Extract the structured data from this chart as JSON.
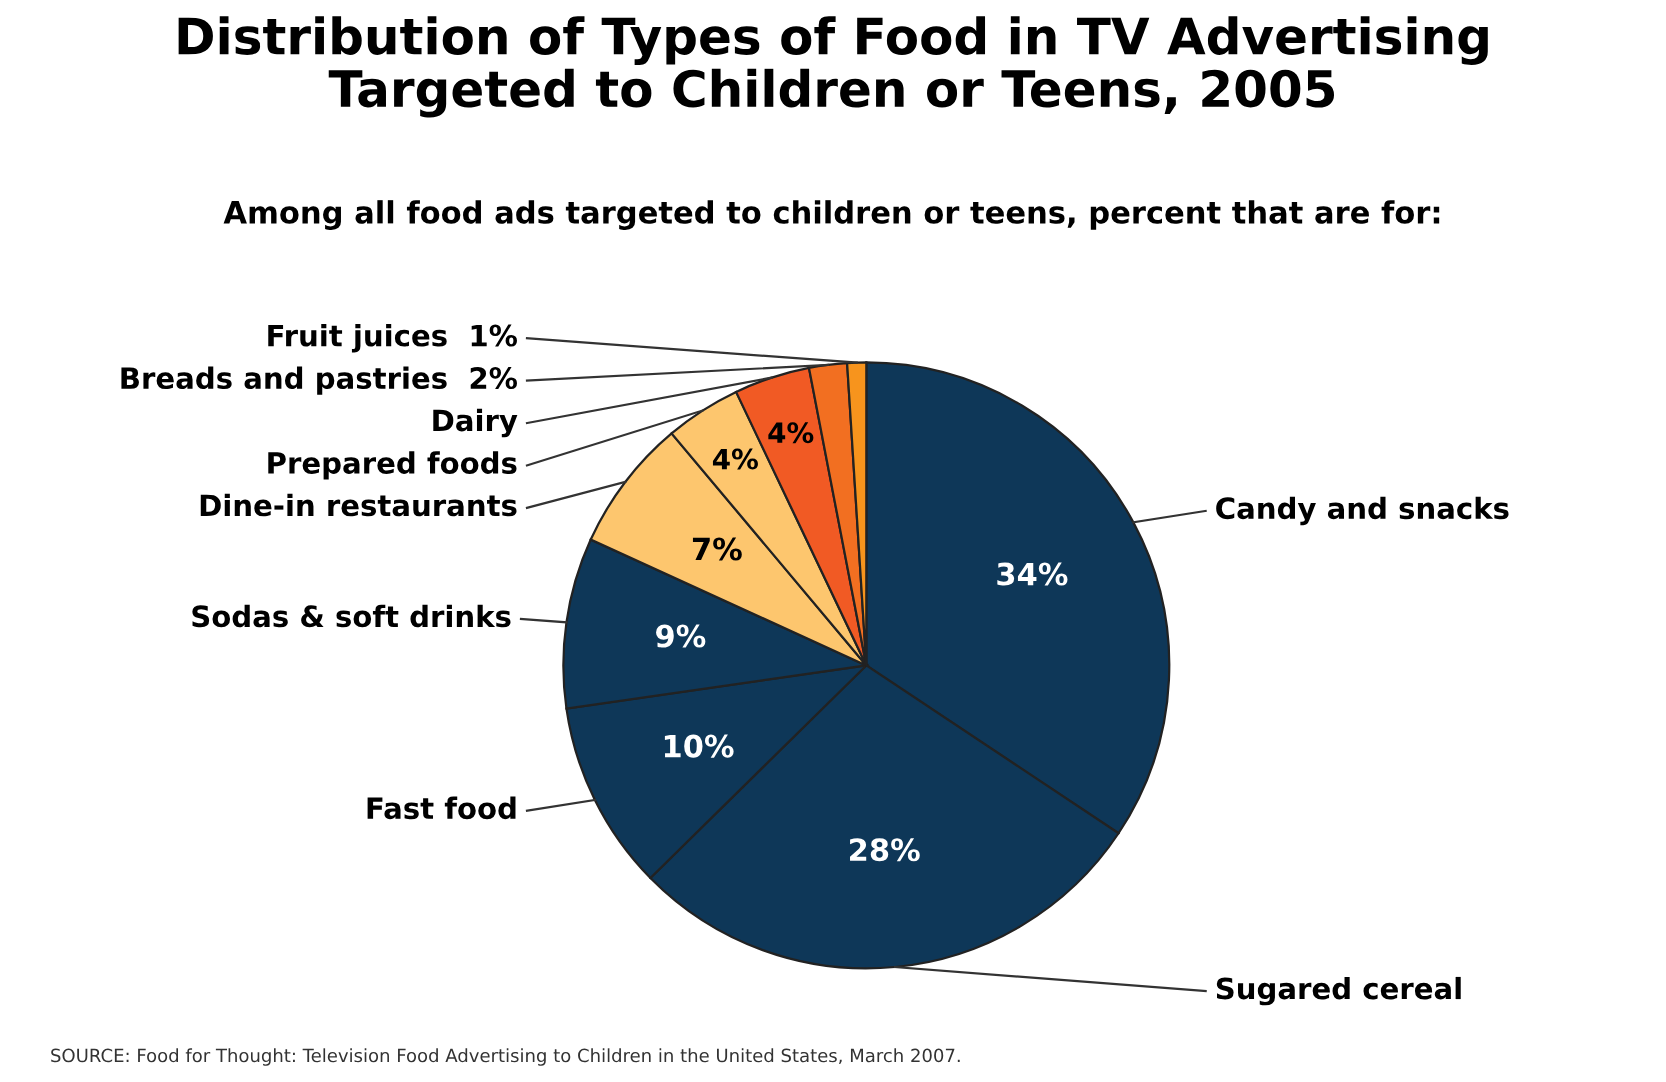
{
  "chart_data": {
    "type": "pie",
    "title": "Distribution of Types of Food in TV Advertising\nTargeted to Children or Teens, 2005",
    "subtitle": "Among all food ads targeted to children or teens, percent that are for:",
    "categories": [
      "Candy and snacks",
      "Sugared cereal",
      "Fast food",
      "Sodas & soft drinks",
      "Dine-in restaurants",
      "Prepared foods",
      "Dairy",
      "Breads and pastries",
      "Fruit juices"
    ],
    "values": [
      34,
      28,
      10,
      9,
      7,
      4,
      4,
      2,
      1
    ],
    "value_labels": [
      "34%",
      "28%",
      "10%",
      "9%",
      "7%",
      "4%",
      "4%",
      "2%",
      "1%"
    ],
    "colors": [
      "#0e3758",
      "#0e3758",
      "#0e3758",
      "#0e3758",
      "#fdc66e",
      "#fdc66e",
      "#f15a24",
      "#f26f21",
      "#f7941d"
    ],
    "annotations": [
      "SOURCE: Food for Thought: Television Food Advertising to Children in the United States, March 2007."
    ]
  }
}
